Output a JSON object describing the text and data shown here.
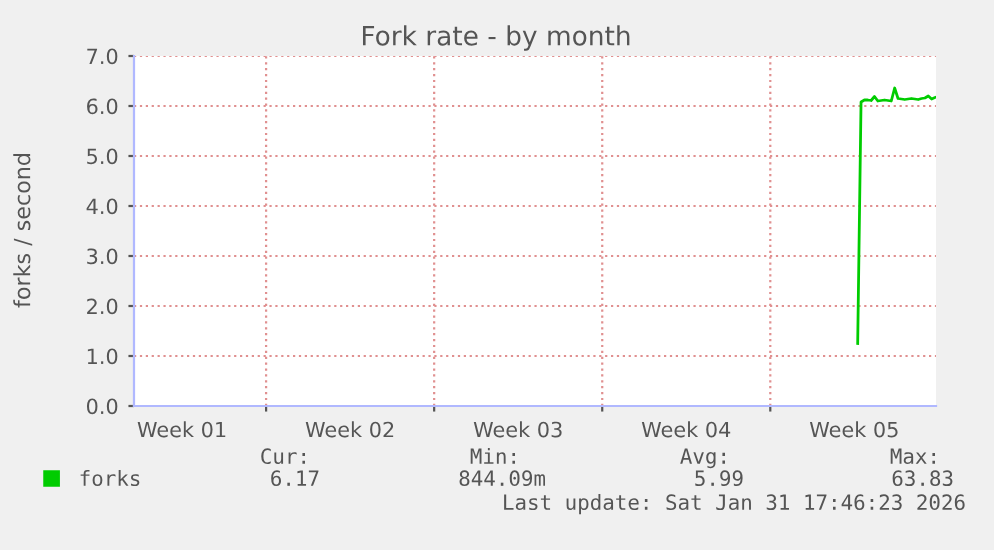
{
  "chart_data": {
    "type": "line",
    "title": "Fork rate - by month",
    "ylabel": "forks / second",
    "categories": [
      null,
      null,
      null,
      null,
      null,
      null,
      null,
      null,
      null,
      null,
      null,
      null,
      null,
      null,
      "Week 01",
      null,
      null,
      null,
      null,
      null,
      null,
      null,
      null,
      null,
      null,
      null,
      null,
      null,
      null,
      null,
      null,
      null,
      null,
      null,
      null,
      null,
      null,
      null,
      null,
      null,
      null,
      null,
      null,
      null,
      null,
      null,
      null,
      null,
      null,
      null,
      null,
      null,
      null,
      null,
      null,
      null,
      null,
      null,
      null,
      null,
      null,
      null,
      null,
      null,
      "Week 02",
      null,
      null,
      null,
      null,
      null,
      null,
      null,
      null,
      null,
      null,
      null,
      null,
      null,
      null,
      null,
      null,
      null,
      null,
      null,
      null,
      null,
      null,
      null,
      null,
      null,
      null,
      null,
      null,
      null,
      null,
      null,
      null,
      null,
      null,
      null,
      null,
      null,
      null,
      null,
      null,
      null,
      null,
      null,
      null,
      null,
      null,
      null,
      null,
      null,
      "Week 03",
      null,
      null,
      null,
      null,
      null,
      null,
      null,
      null,
      null,
      null,
      null,
      null,
      null,
      null,
      null,
      null,
      null,
      null,
      null,
      null,
      null,
      null,
      null,
      null,
      null,
      null,
      null,
      null,
      null,
      null,
      null,
      null,
      null,
      null,
      null,
      null,
      null,
      null,
      null,
      null,
      null,
      null,
      null,
      null,
      null,
      null,
      null,
      null,
      null,
      "Week 04",
      null,
      null,
      null,
      null,
      null,
      null,
      null,
      null,
      null,
      null,
      null,
      null,
      null,
      null,
      null,
      null,
      null,
      null,
      null,
      null,
      null,
      null,
      null,
      null,
      null,
      null,
      null,
      null,
      null,
      null,
      null,
      null,
      null,
      null,
      null,
      null,
      null,
      null,
      null,
      null,
      null,
      null,
      null,
      null,
      null,
      null,
      null,
      null,
      null,
      "Week 05",
      null,
      null,
      null,
      null,
      null,
      null,
      null,
      null,
      null,
      null,
      null,
      null,
      null,
      null,
      null,
      null,
      null,
      null,
      null,
      null,
      null,
      null,
      null,
      null
    ],
    "ylim": [
      0,
      7
    ],
    "yticks": [
      {
        "value": 0,
        "label": "0.0"
      },
      {
        "value": 1,
        "label": "1.0"
      },
      {
        "value": 2,
        "label": "2.0"
      },
      {
        "value": 3,
        "label": "3.0"
      },
      {
        "value": 4,
        "label": "4.0"
      },
      {
        "value": 5,
        "label": "5.0"
      },
      {
        "value": 6,
        "label": "6.0"
      },
      {
        "value": 7,
        "label": "7.0"
      }
    ],
    "grid": true,
    "legend": "bottom left",
    "series": [
      {
        "name": "forks",
        "color": "#00cc00",
        "values": [
          null,
          null,
          null,
          null,
          null,
          null,
          null,
          null,
          null,
          null,
          null,
          null,
          null,
          null,
          null,
          null,
          null,
          null,
          null,
          null,
          null,
          null,
          null,
          null,
          null,
          null,
          null,
          null,
          null,
          null,
          null,
          null,
          null,
          null,
          null,
          null,
          null,
          null,
          null,
          null,
          null,
          null,
          null,
          null,
          null,
          null,
          null,
          null,
          null,
          null,
          null,
          null,
          null,
          null,
          null,
          null,
          null,
          null,
          null,
          null,
          null,
          null,
          null,
          null,
          null,
          null,
          null,
          null,
          null,
          null,
          null,
          null,
          null,
          null,
          null,
          null,
          null,
          null,
          null,
          null,
          null,
          null,
          null,
          null,
          null,
          null,
          null,
          null,
          null,
          null,
          null,
          null,
          null,
          null,
          null,
          null,
          null,
          null,
          null,
          null,
          null,
          null,
          null,
          null,
          null,
          null,
          null,
          null,
          null,
          null,
          null,
          null,
          null,
          null,
          null,
          null,
          null,
          null,
          null,
          null,
          null,
          null,
          null,
          null,
          null,
          null,
          null,
          null,
          null,
          null,
          null,
          null,
          null,
          null,
          null,
          null,
          null,
          null,
          null,
          null,
          null,
          null,
          null,
          null,
          null,
          null,
          null,
          null,
          null,
          null,
          null,
          null,
          null,
          null,
          null,
          null,
          null,
          null,
          null,
          null,
          null,
          null,
          null,
          null,
          null,
          null,
          null,
          null,
          null,
          null,
          null,
          null,
          null,
          null,
          null,
          null,
          null,
          null,
          null,
          null,
          null,
          null,
          null,
          null,
          null,
          null,
          null,
          null,
          null,
          null,
          null,
          null,
          null,
          null,
          null,
          null,
          null,
          null,
          null,
          null,
          null,
          null,
          null,
          null,
          null,
          null,
          null,
          null,
          null,
          null,
          null,
          null,
          null,
          null,
          null,
          1.25,
          6.08,
          6.12,
          6.12,
          6.11,
          6.19,
          6.1,
          6.11,
          6.12,
          6.11,
          6.1,
          6.36,
          6.15,
          6.14,
          6.13,
          6.14,
          6.15,
          6.14,
          6.13,
          6.15,
          6.16,
          6.2,
          6.14,
          6.17
        ]
      }
    ],
    "annotations": [
      "Cur:",
      "6.17",
      "Min:",
      "844.09m",
      "Avg:",
      "5.99",
      "Max:",
      "63.83",
      "Last update: Sat Jan 31 17:46:23 2026"
    ]
  }
}
